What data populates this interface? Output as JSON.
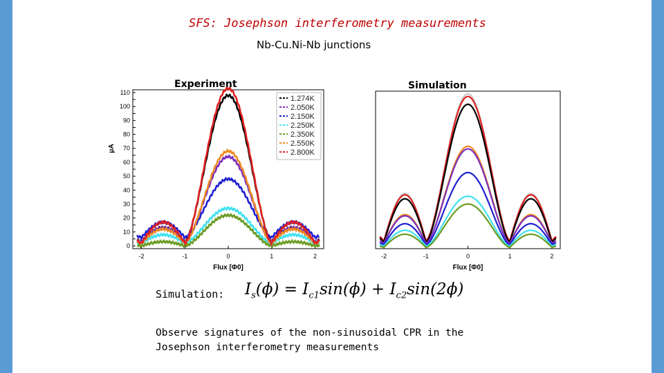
{
  "slide": {
    "title": "SFS:  Josephson interferometry measurements",
    "subtitle": "Nb-Cu.Ni-Nb junctions",
    "experiment_label": "Experiment",
    "simulation_label": "Simulation",
    "simulation_caption": "Simulation:",
    "formula": {
      "lhs": "I",
      "lhs_sub": "s",
      "arg": "(ϕ) = ",
      "t1": "I",
      "t1_sub": "c1",
      "t1_rest": "sin(ϕ) + ",
      "t2": "I",
      "t2_sub": "c2",
      "t2_rest": "sin(2ϕ)"
    },
    "observation": "Observe signatures of the non-sinusoidal CPR in the Josephson interferometry measurements"
  },
  "chart_data": [
    {
      "type": "line",
      "panel": "Experiment",
      "xlabel": "Flux [Φ0]",
      "ylabel": "μA",
      "xlim": [
        -2.2,
        2.2
      ],
      "ylim": [
        -2,
        112
      ],
      "xticks": [
        -2,
        -1,
        0,
        1,
        2
      ],
      "yticks": [
        0,
        5,
        10,
        15,
        20,
        25,
        30,
        35,
        40,
        45,
        50,
        55,
        60,
        65,
        70,
        75,
        80,
        85,
        90,
        95,
        100,
        105,
        110
      ],
      "legend_position": "top-right",
      "series": [
        {
          "name": "1.274K",
          "color": "#000000",
          "peak": 105,
          "side": 10,
          "floor": 3
        },
        {
          "name": "2.050K",
          "color": "#7b2fbf",
          "peak": 61,
          "side": 10,
          "floor": 3
        },
        {
          "name": "2.150K",
          "color": "#1f1fd0",
          "peak": 42,
          "side": 11,
          "floor": 6
        },
        {
          "name": "2.250K",
          "color": "#40e0f0",
          "peak": 25,
          "side": 6,
          "floor": 2
        },
        {
          "name": "2.350K",
          "color": "#6a9a20",
          "peak": 22,
          "side": 3,
          "floor": 0
        },
        {
          "name": "2.550K",
          "color": "#f08a20",
          "peak": 66,
          "side": 10,
          "floor": 2
        },
        {
          "name": "2.800K",
          "color": "#e02020",
          "peak": 111,
          "side": 15,
          "floor": 2
        }
      ]
    },
    {
      "type": "line",
      "panel": "Simulation",
      "xlabel": "Flux [Φ0]",
      "xlim": [
        -2.2,
        2.2
      ],
      "ylim": [
        0,
        120
      ],
      "xticks": [
        -2,
        -1,
        0,
        1,
        2
      ],
      "series": [
        {
          "color": "#c8c8c8",
          "peak": 112,
          "side": 36,
          "floor": 6
        },
        {
          "color": "#e02020",
          "peak": 110,
          "side": 35,
          "floor": 6
        },
        {
          "color": "#000000",
          "peak": 105,
          "side": 33,
          "floor": 5
        },
        {
          "color": "#f08a20",
          "peak": 74,
          "side": 22,
          "floor": 4
        },
        {
          "color": "#7b2fbf",
          "peak": 72,
          "side": 21,
          "floor": 4
        },
        {
          "color": "#1f1fd0",
          "peak": 55,
          "side": 16,
          "floor": 3
        },
        {
          "color": "#40e0f0",
          "peak": 38,
          "side": 12,
          "floor": 2
        },
        {
          "color": "#6a9a20",
          "peak": 33,
          "side": 10,
          "floor": 1
        }
      ]
    }
  ]
}
